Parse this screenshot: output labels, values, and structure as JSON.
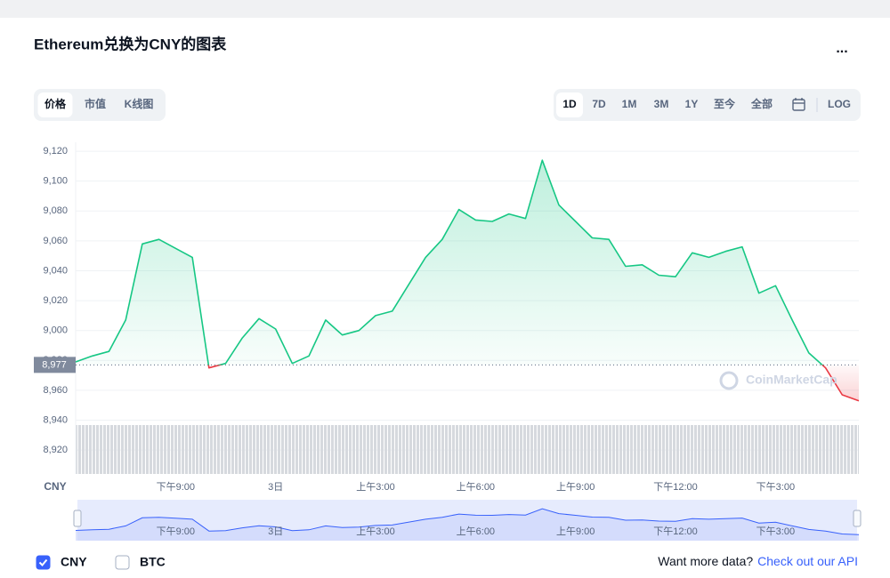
{
  "header": {
    "title": "Ethereum兑换为CNY的图表",
    "menu": "..."
  },
  "tabs": {
    "items": [
      "价格",
      "市值",
      "K线图"
    ],
    "active": "价格"
  },
  "ranges": {
    "items": [
      "1D",
      "7D",
      "1M",
      "3M",
      "1Y",
      "至今",
      "全部"
    ],
    "active": "1D",
    "log": "LOG"
  },
  "chart_data": {
    "type": "line",
    "y_label": "CNY",
    "watermark": "CoinMarketCap",
    "categories": [
      null,
      null,
      null,
      null,
      null,
      null,
      "下午9:00",
      null,
      null,
      null,
      null,
      null,
      "3日",
      null,
      null,
      null,
      null,
      null,
      "上午3:00",
      null,
      null,
      null,
      null,
      null,
      "上午6:00",
      null,
      null,
      null,
      null,
      null,
      "上午9:00",
      null,
      null,
      null,
      null,
      null,
      "下午12:00",
      null,
      null,
      null,
      null,
      null,
      "下午3:00",
      null,
      null,
      null,
      null,
      null
    ],
    "values": [
      8979,
      8983,
      8986,
      9007,
      9058,
      9061,
      9055,
      9049,
      8975,
      8978,
      8995,
      9008,
      9001,
      8978,
      8983,
      9007,
      8997,
      9000,
      9010,
      9013,
      9031,
      9049,
      9061,
      9081,
      9074,
      9073,
      9078,
      9075,
      9114,
      9084,
      9073,
      9062,
      9061,
      9043,
      9044,
      9037,
      9036,
      9052,
      9049,
      9053,
      9056,
      9025,
      9030,
      9007,
      8985,
      8975,
      8957,
      8953
    ],
    "color_up": "#16c784",
    "color_down": "#ea3943",
    "navigator_color": "#3861fb",
    "baseline": {
      "value": 8977,
      "label": "8,977"
    },
    "ylim": [
      8904,
      9126
    ],
    "yticks": [
      {
        "value": 8920,
        "label": "8,920"
      },
      {
        "value": 8940,
        "label": "8,940"
      },
      {
        "value": 8960,
        "label": "8,960"
      },
      {
        "value": 8980,
        "label": "8,980"
      },
      {
        "value": 9000,
        "label": "9,000"
      },
      {
        "value": 9020,
        "label": "9,020"
      },
      {
        "value": 9040,
        "label": "9,040"
      },
      {
        "value": 9060,
        "label": "9,060"
      },
      {
        "value": 9080,
        "label": "9,080"
      },
      {
        "value": 9100,
        "label": "9,100"
      },
      {
        "value": 9120,
        "label": "9,120"
      }
    ],
    "grid": true
  },
  "footer": {
    "options": [
      "CNY",
      "BTC"
    ],
    "checked": "CNY",
    "prompt": "Want more data?",
    "link": "Check out our API"
  }
}
